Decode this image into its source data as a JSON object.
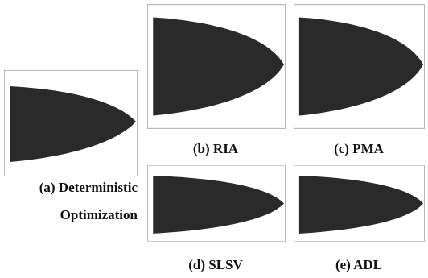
{
  "panels": [
    {
      "caption": [
        "(a) Deterministic",
        "Optimization"
      ]
    },
    {
      "caption": [
        "(b) RIA"
      ]
    },
    {
      "caption": [
        "(c) PMA"
      ]
    },
    {
      "caption": [
        "(d) SLSV"
      ]
    },
    {
      "caption": [
        "(e) ADL"
      ]
    }
  ]
}
